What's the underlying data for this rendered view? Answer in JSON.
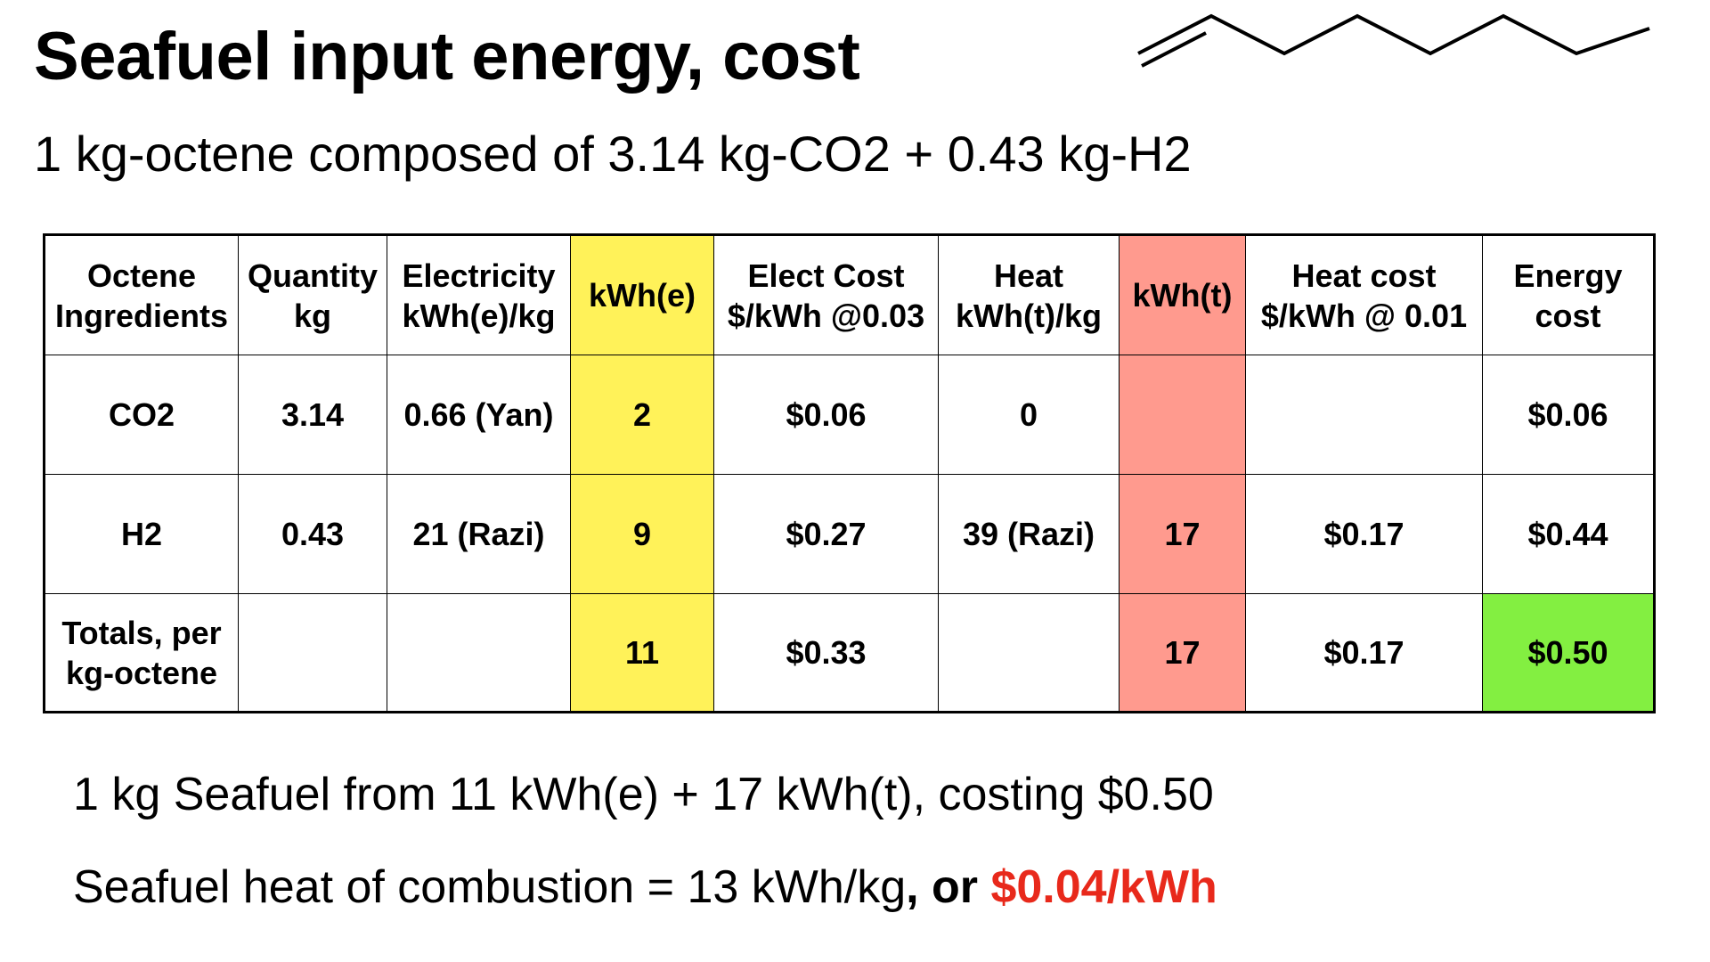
{
  "slide": {
    "title": "Seafuel input energy, cost",
    "subtitle": "1 kg-octene composed of 3.14 kg-CO2 + 0.43 kg-H2",
    "molecule_icon": "octene-skeletal-structure"
  },
  "table": {
    "headers": [
      [
        "Octene",
        "Ingredients"
      ],
      [
        "Quantity",
        "kg"
      ],
      [
        "Electricity",
        "kWh(e)/kg"
      ],
      [
        "kWh(e)"
      ],
      [
        "Elect Cost",
        "$/kWh @0.03"
      ],
      [
        "Heat",
        "kWh(t)/kg"
      ],
      [
        "kWh(t)"
      ],
      [
        "Heat cost",
        "$/kWh @ 0.01"
      ],
      [
        "Energy",
        "cost"
      ]
    ],
    "rows": [
      {
        "ingredient": [
          "CO2"
        ],
        "quantity": "3.14",
        "electricity": "0.66 (Yan)",
        "kwh_e": "2",
        "elect_cost": "$0.06",
        "heat": "0",
        "kwh_t": "",
        "heat_cost": "",
        "energy_cost": "$0.06"
      },
      {
        "ingredient": [
          "H2"
        ],
        "quantity": "0.43",
        "electricity": "21 (Razi)",
        "kwh_e": "9",
        "elect_cost": "$0.27",
        "heat": "39 (Razi)",
        "kwh_t": "17",
        "heat_cost": "$0.17",
        "energy_cost": "$0.44"
      },
      {
        "ingredient": [
          "Totals, per",
          "kg-octene"
        ],
        "quantity": "",
        "electricity": "",
        "kwh_e": "11",
        "elect_cost": "$0.33",
        "heat": "",
        "kwh_t": "17",
        "heat_cost": "$0.17",
        "energy_cost": "$0.50"
      }
    ]
  },
  "summary": {
    "line1": "1 kg Seafuel from 11 kWh(e) + 17 kWh(t), costing $0.50",
    "line2_text": "Seafuel heat of combustion = 13 kWh/kg",
    "line2_or": ", or ",
    "line2_price": "$0.04/kWh"
  },
  "colors": {
    "kwh_e_column": "#FFF259",
    "kwh_t_column": "#FF9A8E",
    "total_energy_cost": "#83EF41",
    "price_highlight": "#E8291B"
  }
}
